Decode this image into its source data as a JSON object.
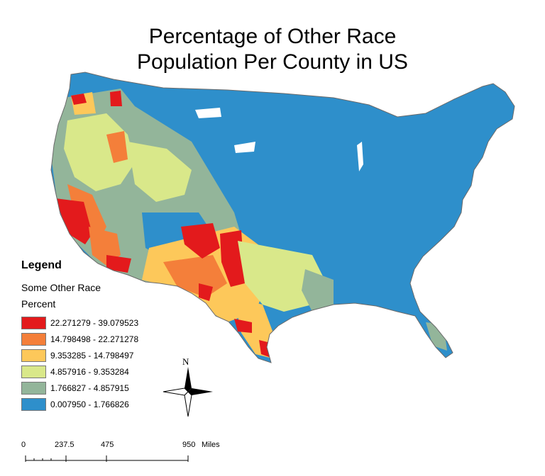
{
  "title_line1": "Percentage of Other Race",
  "title_line2": "Population Per County in US",
  "legend": {
    "title": "Legend",
    "layer": "Some Other Race",
    "field": "Percent",
    "classes": [
      {
        "label": "22.271279 - 39.079523",
        "color": "#e31a1c"
      },
      {
        "label": "14.798498 - 22.271278",
        "color": "#f47f3a"
      },
      {
        "label": "9.353285 - 14.798497",
        "color": "#fdc85a"
      },
      {
        "label": "4.857916 - 9.353284",
        "color": "#d9e88a"
      },
      {
        "label": "1.766827 - 4.857915",
        "color": "#93b59a"
      },
      {
        "label": "0.007950 - 1.766826",
        "color": "#2e8fcb"
      }
    ]
  },
  "north_arrow": {
    "label": "N"
  },
  "scale_bar": {
    "labels": [
      "0",
      "237.5",
      "475",
      "950"
    ],
    "unit": "Miles"
  }
}
